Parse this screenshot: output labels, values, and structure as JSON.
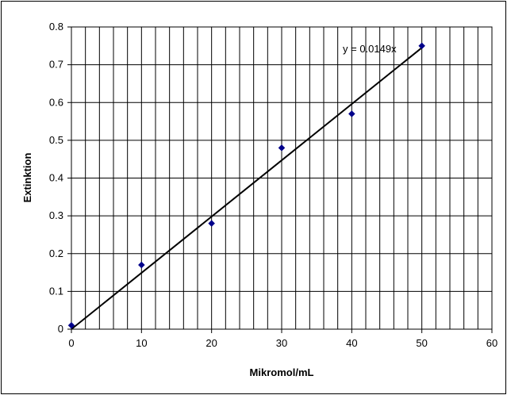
{
  "chart_data": {
    "type": "scatter",
    "title": "",
    "xlabel": "Mikromol/mL",
    "ylabel": "Extinktion",
    "xlim": [
      0,
      60
    ],
    "ylim": [
      0,
      0.8
    ],
    "x_ticks": [
      "0",
      "10",
      "20",
      "30",
      "40",
      "50",
      "60"
    ],
    "y_ticks": [
      "0",
      "0.1",
      "0.2",
      "0.3",
      "0.4",
      "0.5",
      "0.6",
      "0.7",
      "0.8"
    ],
    "x_minor_step": 2,
    "y_major_step": 0.1,
    "grid": true,
    "legend": "none",
    "series": [
      {
        "x": [
          0,
          10,
          20,
          30,
          40,
          50
        ],
        "y": [
          0.01,
          0.17,
          0.28,
          0.48,
          0.57,
          0.75
        ],
        "marker_color": "#00008B"
      }
    ],
    "trendline": {
      "type": "linear-through-origin",
      "slope": 0.0149,
      "label": "y = 0.0149x",
      "color": "#000000"
    }
  },
  "colors": {
    "frame": "#000000",
    "background": "#ffffff",
    "grid": "#000000",
    "marker": "#00008B"
  }
}
